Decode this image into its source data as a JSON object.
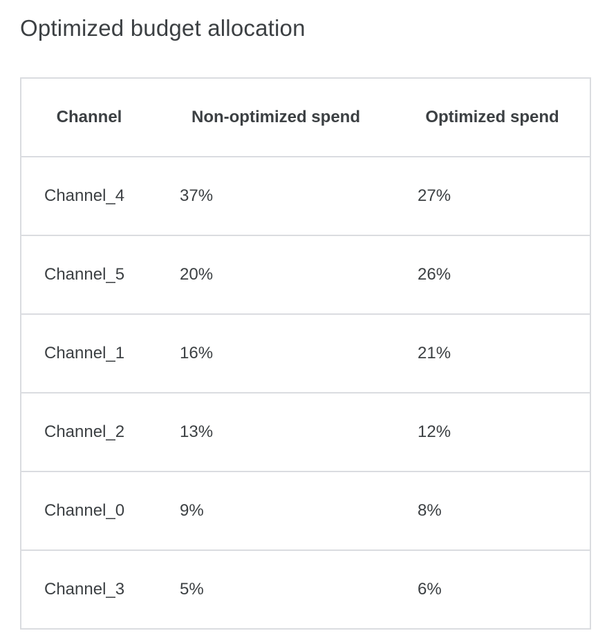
{
  "title": "Optimized budget allocation",
  "table": {
    "headers": [
      "Channel",
      "Non-optimized spend",
      "Optimized spend"
    ],
    "rows": [
      [
        "Channel_4",
        "37%",
        "27%"
      ],
      [
        "Channel_5",
        "20%",
        "26%"
      ],
      [
        "Channel_1",
        "16%",
        "21%"
      ],
      [
        "Channel_2",
        "13%",
        "12%"
      ],
      [
        "Channel_0",
        "9%",
        "8%"
      ],
      [
        "Channel_3",
        "5%",
        "6%"
      ]
    ]
  }
}
